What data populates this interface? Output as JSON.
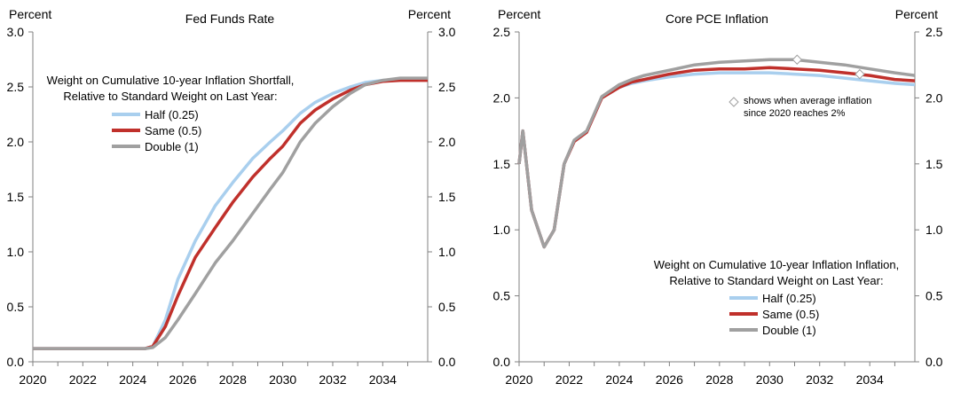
{
  "chart_data": [
    {
      "type": "line",
      "title": "Fed Funds Rate",
      "ylabel_left": "Percent",
      "ylabel_right": "Percent",
      "xlim": [
        2020,
        2035.8
      ],
      "ylim": [
        0,
        3
      ],
      "x_ticks": [
        2020,
        2022,
        2024,
        2026,
        2028,
        2030,
        2032,
        2034
      ],
      "x_tick_labels": [
        "2020",
        "2022",
        "2024",
        "2026",
        "2028",
        "2030",
        "2032",
        "2034"
      ],
      "y_ticks": [
        0,
        0.5,
        1,
        1.5,
        2,
        2.5,
        3
      ],
      "y_tick_labels": [
        "0.0",
        "0.5",
        "1.0",
        "1.5",
        "2.0",
        "2.5",
        "3.0"
      ],
      "legend": {
        "title_line1": "Weight on Cumulative 10-year Inflation Shortfall,",
        "title_line2": "Relative to Standard Weight on Last Year:",
        "placement": "upper-left"
      },
      "series": [
        {
          "name": "Half (0.25)",
          "color": "#a9cfee",
          "x": [
            2020,
            2024.5,
            2024.8,
            2025.3,
            2025.8,
            2026.5,
            2027.3,
            2028,
            2028.8,
            2029.5,
            2030,
            2030.7,
            2031.3,
            2032,
            2032.7,
            2033.3,
            2034,
            2034.7,
            2035.8
          ],
          "values": [
            0.12,
            0.12,
            0.14,
            0.38,
            0.75,
            1.1,
            1.42,
            1.63,
            1.85,
            2.0,
            2.1,
            2.26,
            2.36,
            2.44,
            2.5,
            2.54,
            2.56,
            2.57,
            2.57
          ]
        },
        {
          "name": "Same (0.5)",
          "color": "#c0302b",
          "x": [
            2020,
            2024.5,
            2024.8,
            2025.3,
            2025.8,
            2026.5,
            2027.3,
            2028,
            2028.8,
            2029.5,
            2030,
            2030.7,
            2031.3,
            2032,
            2032.7,
            2033.3,
            2034,
            2034.7,
            2035.8
          ],
          "values": [
            0.12,
            0.12,
            0.14,
            0.32,
            0.6,
            0.95,
            1.22,
            1.45,
            1.68,
            1.85,
            1.96,
            2.17,
            2.29,
            2.39,
            2.47,
            2.52,
            2.55,
            2.56,
            2.56
          ]
        },
        {
          "name": "Double (1)",
          "color": "#a0a0a0",
          "x": [
            2020,
            2024.5,
            2024.8,
            2025.3,
            2025.8,
            2026.5,
            2027.3,
            2028,
            2028.8,
            2029.5,
            2030,
            2030.7,
            2031.3,
            2032,
            2032.7,
            2033.3,
            2034,
            2034.7,
            2035.8
          ],
          "values": [
            0.12,
            0.12,
            0.13,
            0.22,
            0.38,
            0.62,
            0.9,
            1.1,
            1.35,
            1.57,
            1.72,
            2.0,
            2.17,
            2.32,
            2.44,
            2.52,
            2.56,
            2.58,
            2.58
          ]
        }
      ]
    },
    {
      "type": "line",
      "title": "Core PCE Inflation",
      "ylabel_left": "Percent",
      "ylabel_right": "Percent",
      "xlim": [
        2020,
        2035.8
      ],
      "ylim": [
        0,
        2.5
      ],
      "x_ticks": [
        2020,
        2022,
        2024,
        2026,
        2028,
        2030,
        2032,
        2034
      ],
      "x_tick_labels": [
        "2020",
        "2022",
        "2024",
        "2026",
        "2028",
        "2030",
        "2032",
        "2034"
      ],
      "y_ticks": [
        0,
        0.5,
        1,
        1.5,
        2,
        2.5
      ],
      "y_tick_labels": [
        "0.0",
        "0.5",
        "1.0",
        "1.5",
        "2.0",
        "2.5"
      ],
      "annotation": {
        "line1": "shows when average inflation",
        "line2": "since 2020 reaches 2%",
        "marker": "diamond",
        "markers": [
          {
            "x": 2031.1,
            "y": 2.29
          },
          {
            "x": 2033.6,
            "y": 2.18
          }
        ]
      },
      "legend": {
        "title_line1": "Weight on Cumulative 10-year Inflation Inflation,",
        "title_line2": "Relative to Standard Weight on  Last Year:",
        "placement": "lower-center"
      },
      "series": [
        {
          "name": "Half (0.25)",
          "color": "#a9cfee",
          "x": [
            2020,
            2020.15,
            2020.5,
            2021,
            2021.4,
            2021.8,
            2022.2,
            2022.7,
            2023.3,
            2024,
            2024.5,
            2025,
            2026,
            2027,
            2028,
            2029,
            2030,
            2031,
            2032,
            2033,
            2034,
            2035,
            2035.8
          ],
          "values": [
            1.5,
            1.75,
            1.15,
            0.87,
            1.0,
            1.5,
            1.67,
            1.74,
            2.0,
            2.08,
            2.11,
            2.13,
            2.16,
            2.18,
            2.19,
            2.19,
            2.19,
            2.18,
            2.17,
            2.15,
            2.13,
            2.11,
            2.1
          ]
        },
        {
          "name": "Same (0.5)",
          "color": "#c0302b",
          "x": [
            2020,
            2020.15,
            2020.5,
            2021,
            2021.4,
            2021.8,
            2022.2,
            2022.7,
            2023.3,
            2024,
            2024.5,
            2025,
            2026,
            2027,
            2028,
            2029,
            2030,
            2031,
            2032,
            2033,
            2034,
            2035,
            2035.8
          ],
          "values": [
            1.5,
            1.75,
            1.15,
            0.87,
            1.0,
            1.5,
            1.67,
            1.74,
            2.0,
            2.08,
            2.12,
            2.14,
            2.18,
            2.21,
            2.22,
            2.22,
            2.23,
            2.22,
            2.21,
            2.19,
            2.17,
            2.14,
            2.13
          ]
        },
        {
          "name": "Double (1)",
          "color": "#a0a0a0",
          "x": [
            2020,
            2020.15,
            2020.5,
            2021,
            2021.4,
            2021.8,
            2022.2,
            2022.7,
            2023.3,
            2024,
            2024.5,
            2025,
            2026,
            2027,
            2028,
            2029,
            2030,
            2031,
            2032,
            2033,
            2034,
            2035,
            2035.8
          ],
          "values": [
            1.5,
            1.75,
            1.15,
            0.87,
            1.0,
            1.5,
            1.68,
            1.75,
            2.01,
            2.1,
            2.14,
            2.17,
            2.21,
            2.25,
            2.27,
            2.28,
            2.29,
            2.29,
            2.27,
            2.25,
            2.22,
            2.19,
            2.17
          ]
        }
      ]
    }
  ]
}
